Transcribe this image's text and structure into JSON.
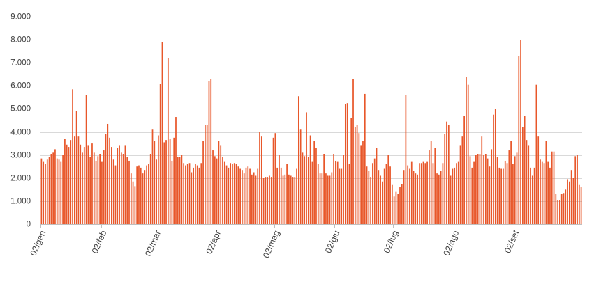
{
  "chart_data": {
    "type": "bar",
    "title": "",
    "xlabel": "",
    "ylabel": "",
    "ylim": [
      0,
      9000
    ],
    "y_ticks": [
      {
        "value": 0,
        "label": "0"
      },
      {
        "value": 1000,
        "label": "1.000"
      },
      {
        "value": 2000,
        "label": "2.000"
      },
      {
        "value": 3000,
        "label": "3.000"
      },
      {
        "value": 4000,
        "label": "4.000"
      },
      {
        "value": 5000,
        "label": "5.000"
      },
      {
        "value": 6000,
        "label": "6.000"
      },
      {
        "value": 7000,
        "label": "7.000"
      },
      {
        "value": 8000,
        "label": "8.000"
      },
      {
        "value": 9000,
        "label": "9.000"
      }
    ],
    "x_ticks": [
      {
        "day": 1,
        "label": "02/gen"
      },
      {
        "day": 32,
        "label": "02/feb"
      },
      {
        "day": 60,
        "label": "02/mar"
      },
      {
        "day": 91,
        "label": "02/apr"
      },
      {
        "day": 121,
        "label": "02/mag"
      },
      {
        "day": 152,
        "label": "02/giu"
      },
      {
        "day": 182,
        "label": "02/lug"
      },
      {
        "day": 213,
        "label": "02/ago"
      },
      {
        "day": 244,
        "label": "02/set"
      }
    ],
    "grid": true,
    "legend": "none",
    "color": "#e8572a",
    "values": [
      2850,
      2700,
      2600,
      2800,
      2900,
      3050,
      3100,
      3250,
      2850,
      2800,
      2700,
      3000,
      3700,
      3450,
      3350,
      3650,
      5850,
      3800,
      4900,
      3800,
      3450,
      3100,
      3350,
      5600,
      3400,
      2900,
      3500,
      3100,
      2750,
      2950,
      3050,
      2700,
      3200,
      3900,
      4350,
      3750,
      3350,
      2800,
      2550,
      3300,
      3400,
      3100,
      3050,
      3400,
      2900,
      2750,
      2200,
      1850,
      1650,
      2500,
      2550,
      2450,
      2200,
      2350,
      2550,
      2600,
      3050,
      4100,
      3600,
      2800,
      3850,
      6100,
      7900,
      3550,
      3650,
      7200,
      3700,
      2750,
      3750,
      4650,
      2900,
      2900,
      3000,
      2650,
      2550,
      2600,
      2650,
      2250,
      2450,
      2600,
      2550,
      2450,
      2650,
      3600,
      4300,
      4300,
      6200,
      6300,
      3200,
      2950,
      2850,
      3600,
      3400,
      2900,
      2700,
      2550,
      2450,
      2650,
      2600,
      2650,
      2600,
      2500,
      2400,
      2350,
      2200,
      2450,
      2500,
      2400,
      2150,
      2250,
      2100,
      2400,
      4000,
      3800,
      2000,
      2050,
      2050,
      2100,
      2050,
      3750,
      3950,
      2450,
      3000,
      2450,
      2100,
      2150,
      2600,
      2150,
      2100,
      2050,
      2050,
      2400,
      5550,
      4100,
      3100,
      2950,
      4850,
      2900,
      3850,
      2700,
      3600,
      3300,
      2600,
      2200,
      2200,
      3050,
      2200,
      2100,
      2100,
      2250,
      3050,
      2750,
      2700,
      2400,
      2400,
      3000,
      5200,
      5250,
      2600,
      4600,
      6300,
      4200,
      4300,
      3950,
      3400,
      3600,
      5650,
      2500,
      2300,
      2050,
      2650,
      2850,
      3300,
      2350,
      2100,
      1850,
      2400,
      2600,
      3000,
      2500,
      1700,
      1200,
      1400,
      1300,
      1600,
      1750,
      2350,
      5600,
      2550,
      2400,
      2700,
      2300,
      2200,
      2150,
      2650,
      2650,
      2700,
      2650,
      2700,
      3200,
      3600,
      2650,
      3300,
      2200,
      2150,
      2300,
      2650,
      3900,
      4450,
      4300,
      2100,
      2400,
      2450,
      2650,
      2700,
      3400,
      3800,
      4700,
      6400,
      6050,
      2950,
      2450,
      2700,
      3000,
      3050,
      3050,
      3800,
      3000,
      3050,
      2850,
      2500,
      3250,
      4750,
      5000,
      2900,
      2450,
      2400,
      2400,
      2750,
      2650,
      3200,
      3600,
      2600,
      2950,
      3100,
      7300,
      8000,
      4200,
      4700,
      3650,
      3400,
      2450,
      2100,
      2450,
      6050,
      3800,
      2800,
      2700,
      2650,
      3600,
      2700,
      2450,
      3150,
      3150,
      1300,
      1050,
      1050,
      1300,
      1350,
      1500,
      1950,
      1850,
      2350,
      2000,
      2950,
      3000,
      1700,
      1600
    ]
  }
}
